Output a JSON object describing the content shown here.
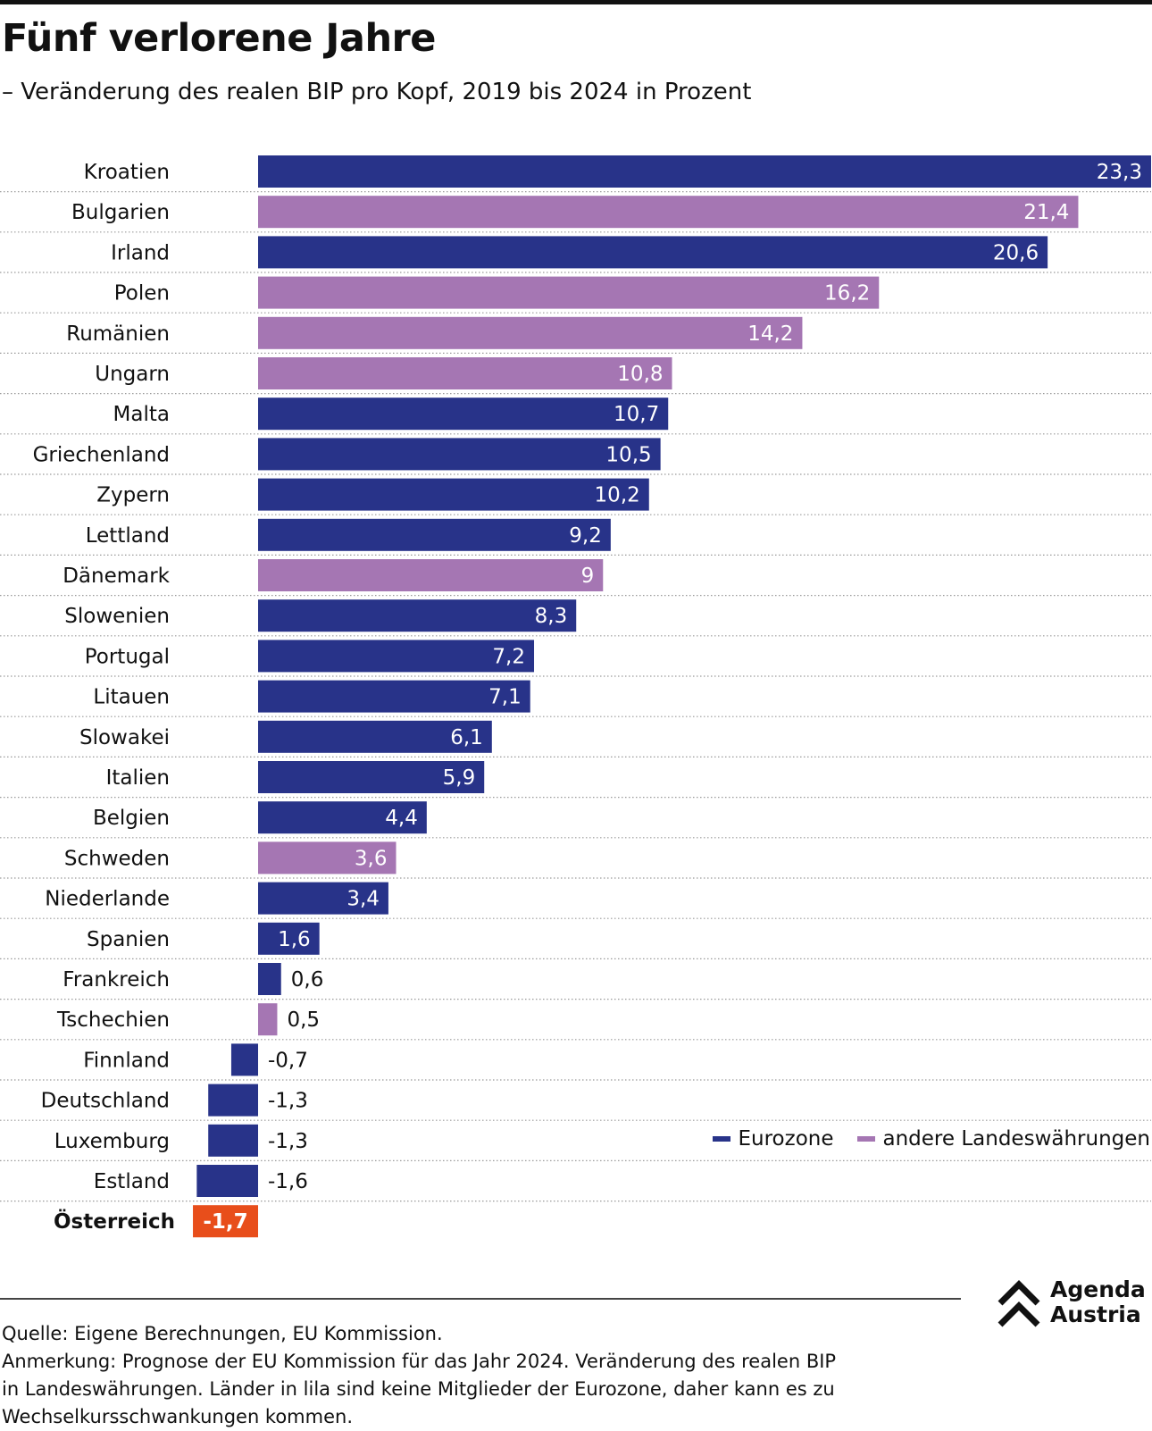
{
  "header": {
    "title": "Fünf verlorene Jahre",
    "subtitle": "– Veränderung des realen BIP pro Kopf, 2019 bis 2024 in Prozent"
  },
  "colors": {
    "eurozone": "#283389",
    "andere": "#a576b3",
    "highlight": "#e84e1b",
    "text": "#111111"
  },
  "legend": {
    "eurozone": "Eurozone",
    "andere": "andere Landeswährungen"
  },
  "chart_data": {
    "type": "bar",
    "orientation": "horizontal",
    "title": "Fünf verlorene Jahre",
    "subtitle": "– Veränderung des realen BIP pro Kopf, 2019 bis 2024 in Prozent",
    "categories": [
      "Kroatien",
      "Bulgarien",
      "Irland",
      "Polen",
      "Rumänien",
      "Ungarn",
      "Malta",
      "Griechenland",
      "Zypern",
      "Lettland",
      "Dänemark",
      "Slowenien",
      "Portugal",
      "Litauen",
      "Slowakei",
      "Italien",
      "Belgien",
      "Schweden",
      "Niederlande",
      "Spanien",
      "Frankreich",
      "Tschechien",
      "Finnland",
      "Deutschland",
      "Luxemburg",
      "Estland",
      "Österreich"
    ],
    "values": [
      23.3,
      21.4,
      20.6,
      16.2,
      14.2,
      10.8,
      10.7,
      10.5,
      10.2,
      9.2,
      9,
      8.3,
      7.2,
      7.1,
      6.1,
      5.9,
      4.4,
      3.6,
      3.4,
      1.6,
      0.6,
      0.5,
      -0.7,
      -1.3,
      -1.3,
      -1.6,
      -1.7
    ],
    "labels": [
      "23,3",
      "21,4",
      "20,6",
      "16,2",
      "14,2",
      "10,8",
      "10,7",
      "10,5",
      "10,2",
      "9,2",
      "9",
      "8,3",
      "7,2",
      "7,1",
      "6,1",
      "5,9",
      "4,4",
      "3,6",
      "3,4",
      "1,6",
      "0,6",
      "0,5",
      "-0,7",
      "-1,3",
      "-1,3",
      "-1,6",
      "-1,7"
    ],
    "groups": [
      "eurozone",
      "andere",
      "eurozone",
      "andere",
      "andere",
      "andere",
      "eurozone",
      "eurozone",
      "eurozone",
      "eurozone",
      "andere",
      "eurozone",
      "eurozone",
      "eurozone",
      "eurozone",
      "eurozone",
      "eurozone",
      "andere",
      "eurozone",
      "eurozone",
      "eurozone",
      "andere",
      "eurozone",
      "eurozone",
      "eurozone",
      "eurozone",
      "highlight"
    ],
    "series": [
      {
        "name": "Eurozone",
        "color": "#283389"
      },
      {
        "name": "andere Landeswährungen",
        "color": "#a576b3"
      }
    ],
    "highlight": "Österreich",
    "xlim": [
      -1.7,
      23.3
    ],
    "grid": "dotted separators between rows",
    "legend_position": "bottom-right"
  },
  "footer": {
    "source": "Quelle: Eigene Berechnungen, EU Kommission.",
    "note_line1": "Anmerkung: Prognose der EU Kommission für das Jahr 2024. Veränderung des realen BIP",
    "note_line2": "in Landeswährungen. Länder in lila sind keine Mitglieder der Eurozone, daher kann es zu",
    "note_line3": "Wechselkursschwankungen kommen."
  },
  "logo": {
    "line1": "Agenda",
    "line2": "Austria"
  }
}
